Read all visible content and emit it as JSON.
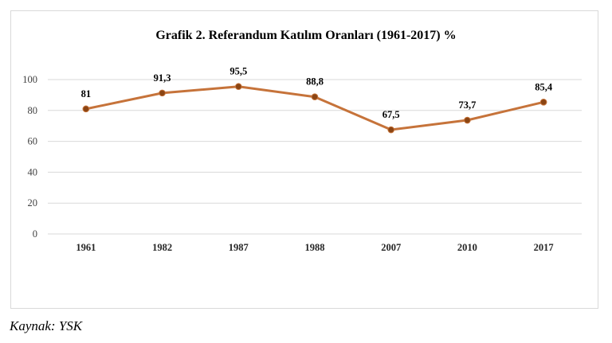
{
  "chart_data": {
    "type": "line",
    "title": "Grafik 2. Referandum Katılım Oranları (1961-2017) %",
    "xlabel": "",
    "ylabel": "",
    "categories": [
      "1961",
      "1982",
      "1987",
      "1988",
      "2007",
      "2010",
      "2017"
    ],
    "series": [
      {
        "values": [
          81,
          91.3,
          95.5,
          88.8,
          67.5,
          73.7,
          85.4
        ],
        "labels": [
          "81",
          "91,3",
          "95,5",
          "88,8",
          "67,5",
          "73,7",
          "85,4"
        ]
      }
    ],
    "yticks": [
      "0",
      "20",
      "40",
      "60",
      "80",
      "100"
    ],
    "ylim": [
      0,
      100
    ],
    "grid": true,
    "legend": "none",
    "colors": {
      "line": "#C6733A",
      "marker": "#8B4513",
      "grid": "#d9d9d9"
    }
  },
  "source_note": "Kaynak: YSK"
}
